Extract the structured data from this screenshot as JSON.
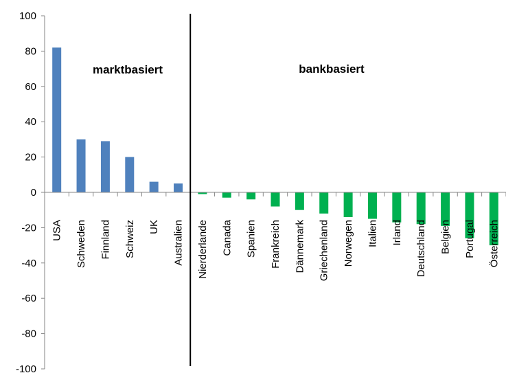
{
  "chart_data": {
    "type": "bar",
    "title": "",
    "xlabel": "",
    "ylabel": "",
    "ylim": [
      -100,
      100
    ],
    "yticks": [
      100,
      80,
      60,
      40,
      20,
      0,
      -20,
      -40,
      -60,
      -80,
      -100
    ],
    "grid": false,
    "legend": "none",
    "colors": {
      "positive": "#4f81bd",
      "negative": "#00b050"
    },
    "categories": [
      "USA",
      "Schweden",
      "Finnland",
      "Schweiz",
      "UK",
      "Australien",
      "Nierderlande",
      "Canada",
      "Spanien",
      "Frankreich",
      "Dännemark",
      "Griechenland",
      "Norwegen",
      "Italien",
      "Irland",
      "Deutschland",
      "Belgien",
      "Portugal",
      "Österreich"
    ],
    "values": [
      82,
      30,
      29,
      20,
      6,
      5,
      -1,
      -3,
      -4,
      -8,
      -10,
      -12,
      -14,
      -15,
      -17,
      -18,
      -19,
      -26,
      -30
    ],
    "annotations": [
      {
        "text": "marktbasiert"
      },
      {
        "text": "bankbasiert"
      }
    ]
  }
}
